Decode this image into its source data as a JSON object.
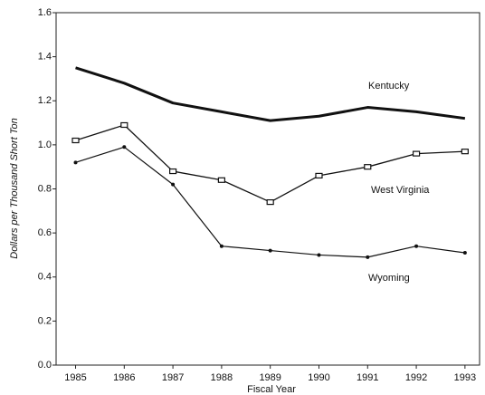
{
  "chart_data": {
    "type": "line",
    "x_label": "Fiscal Year",
    "y_label": "Dollars per Thousand Short Ton",
    "x": [
      1985,
      1986,
      1987,
      1988,
      1989,
      1990,
      1991,
      1992,
      1993
    ],
    "xlim": [
      1984.6,
      1993.3
    ],
    "xticks": [
      1985,
      1986,
      1987,
      1988,
      1989,
      1990,
      1991,
      1992,
      1993
    ],
    "ylim": [
      0,
      1.6
    ],
    "yticks": [
      {
        "value": 0,
        "label": "0.0"
      },
      0.2,
      0.4,
      0.6,
      0.8,
      {
        "value": 1,
        "label": "1.0"
      },
      1.2,
      1.4,
      1.6
    ],
    "series": [
      {
        "name": "Kentucky",
        "color": "#111111",
        "marker": "none",
        "values": [
          1.35,
          1.28,
          1.19,
          1.15,
          1.11,
          1.13,
          1.17,
          1.15,
          1.12
        ]
      },
      {
        "name": "West Virginia",
        "color": "#111111",
        "marker": "square",
        "values": [
          1.02,
          1.09,
          0.88,
          0.84,
          0.74,
          0.86,
          0.9,
          0.96,
          0.97
        ]
      },
      {
        "name": "Wyoming",
        "color": "#111111",
        "marker": "dot",
        "values": [
          0.92,
          0.99,
          0.82,
          0.54,
          0.52,
          0.5,
          0.49,
          0.54,
          0.51
        ]
      }
    ]
  }
}
